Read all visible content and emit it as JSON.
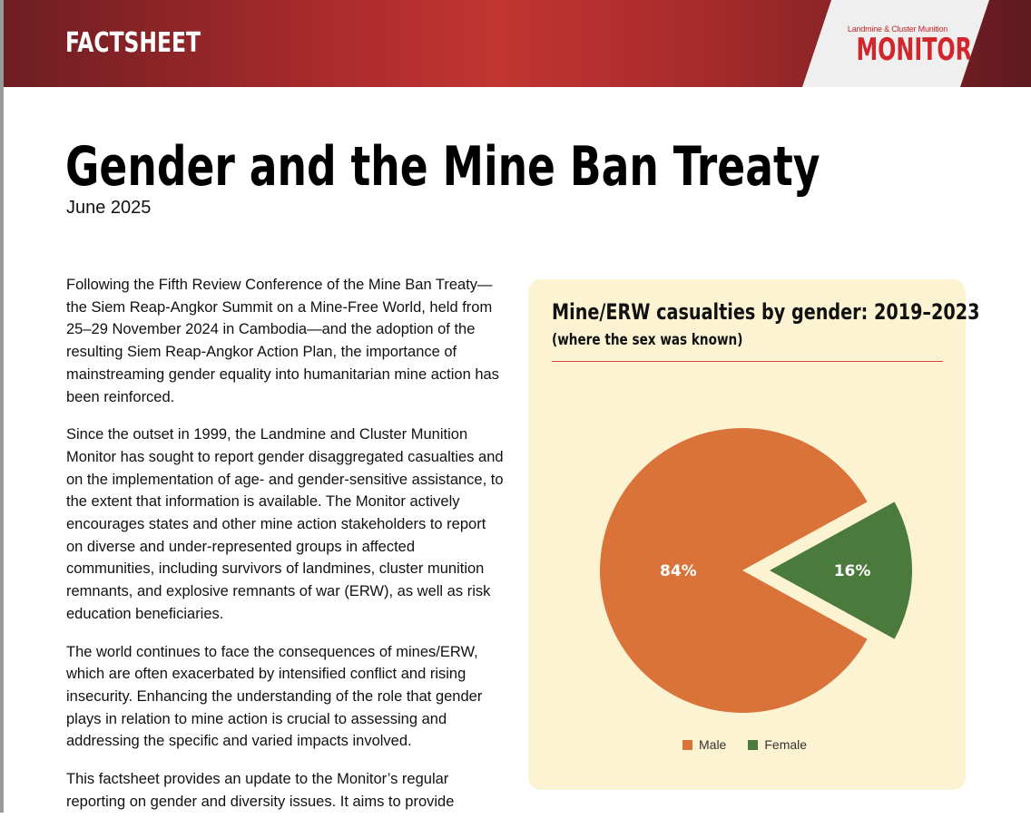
{
  "header": {
    "label": "FACTSHEET"
  },
  "logo": {
    "small": "Landmine & Cluster Munition",
    "big": "MONITOR"
  },
  "document": {
    "title": "Gender and the Mine Ban Treaty",
    "date": "June 2025",
    "paragraphs": [
      "Following the Fifth Review Conference of the Mine Ban Treaty—the Siem Reap-Angkor Summit on a Mine-Free World, held from 25–29 November 2024 in Cambodia—and the adoption of the resulting Siem Reap-Angkor Action Plan, the importance of mainstreaming gender equality into humanitarian mine action has been reinforced.",
      "Since the outset in 1999, the Landmine and Cluster Munition Monitor has sought to report gender disaggregated casualties and on the implementation of age- and gender-sensitive assistance, to the extent that information is available. The Monitor actively encourages states and other mine action stakeholders to report on diverse and under-represented groups in affected communities, including survivors of landmines, cluster munition remnants, and explosive remnants of war (ERW), as well as risk education beneficiaries.",
      "The world continues to face the consequences of mines/ERW, which are often exacerbated by intensified conflict and rising insecurity. Enhancing the understanding of the role that gender plays in relation to mine action is crucial to assessing and addressing the specific and varied impacts involved.",
      "This factsheet provides an update to the Monitor’s regular reporting on gender and diversity issues. It aims to provide"
    ]
  },
  "colors": {
    "header": "#c23531",
    "panel": "#fcf3d2",
    "male": "#d9733a",
    "female": "#4a7a3c",
    "accent": "#d5433c"
  },
  "chart_data": {
    "type": "pie",
    "title": "Mine/ERW casualties by gender: 2019–2023",
    "subtitle": "(where the sex was known)",
    "categories": [
      "Male",
      "Female"
    ],
    "values": [
      84,
      16
    ],
    "labels": [
      "84%",
      "16%"
    ],
    "colors": [
      "#d9733a",
      "#4a7a3c"
    ],
    "legend": "bottom"
  }
}
